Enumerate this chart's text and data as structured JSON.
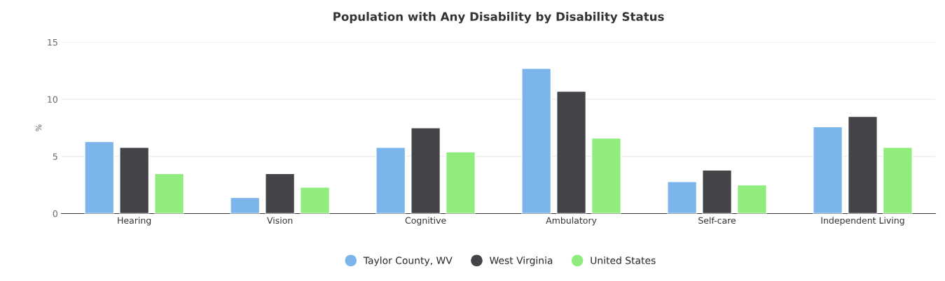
{
  "chart_data": {
    "type": "bar",
    "title": "Population with Any Disability by Disability Status",
    "ylabel": "%",
    "categories": [
      "Hearing",
      "Vision",
      "Cognitive",
      "Ambulatory",
      "Self-care",
      "Independent Living"
    ],
    "series": [
      {
        "name": "Taylor County, WV",
        "color": "#7cb5ec",
        "values": [
          6.3,
          1.4,
          5.8,
          12.7,
          2.8,
          7.6
        ]
      },
      {
        "name": "West Virginia",
        "color": "#434348",
        "values": [
          5.8,
          3.5,
          7.5,
          10.7,
          3.8,
          8.5
        ]
      },
      {
        "name": "United States",
        "color": "#90ed7d",
        "values": [
          3.5,
          2.3,
          5.4,
          6.6,
          2.5,
          5.8
        ]
      }
    ],
    "ylim": [
      0,
      15
    ],
    "yticks": [
      0,
      5,
      10,
      15
    ],
    "grid": "y",
    "legend": "bottom"
  }
}
